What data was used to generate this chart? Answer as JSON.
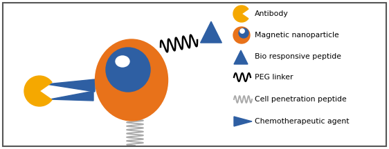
{
  "fig_width": 5.62,
  "fig_height": 2.16,
  "dpi": 100,
  "bg_color": "#ffffff",
  "border_color": "#555555",
  "orange_color": "#E8721A",
  "blue_color": "#2E5FA3",
  "gold_color": "#F5A800",
  "white_color": "#ffffff",
  "gray_color": "#aaaaaa",
  "legend_items": [
    "Antibody",
    "Magnetic nanoparticle",
    "Bio responsive peptide",
    "PEG linker",
    "Cell penetration peptide",
    "Chemotherapeutic agent"
  ]
}
